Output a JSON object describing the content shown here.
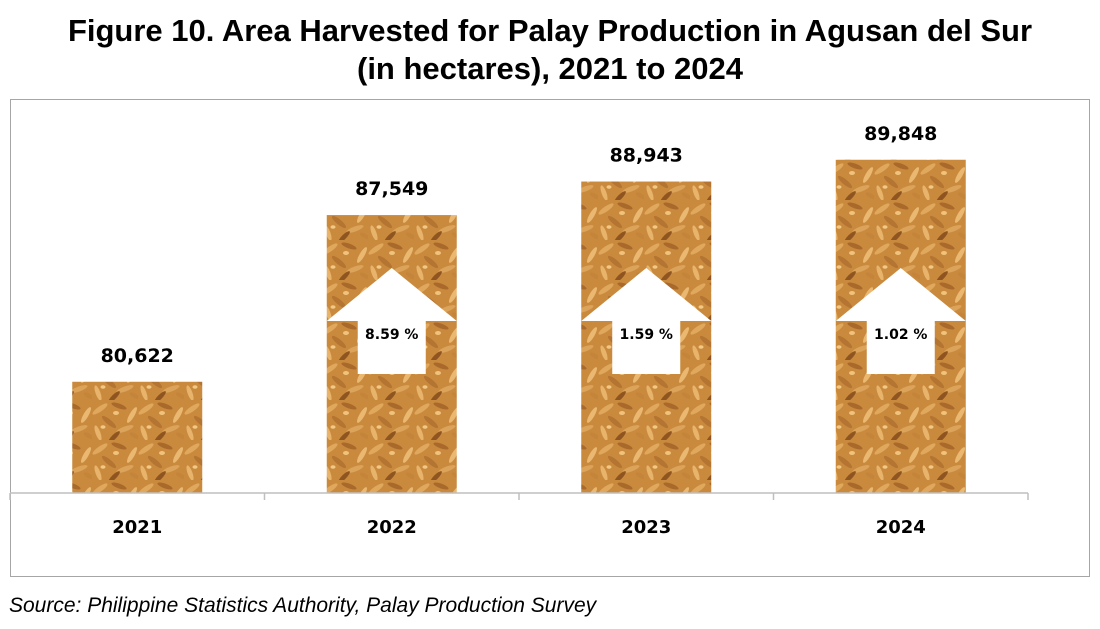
{
  "title_line1": "Figure 10. Area Harvested for Palay Production in Agusan del Sur",
  "title_line2": "(in hectares), 2021 to 2024",
  "source": "Source: Philippine Statistics Authority, Palay Production Survey",
  "colors": {
    "grain_base": "#c98a3e",
    "grain_light": "#e8b36a",
    "grain_dark": "#7a4a1c",
    "arrow": "#ffffff",
    "axis": "#bfbfbf",
    "frame": "#a6a6a6"
  },
  "chart_data": {
    "type": "bar",
    "categories": [
      "2021",
      "2022",
      "2023",
      "2024"
    ],
    "values": [
      80622,
      87549,
      88943,
      89848
    ],
    "value_labels": [
      "80,622",
      "87,549",
      "88,943",
      "89,848"
    ],
    "growth_labels": [
      "",
      "8.59 %",
      "1.59 %",
      "1.02 %"
    ],
    "title": "Figure 10. Area Harvested for Palay Production in Agusan del Sur (in hectares), 2021 to 2024",
    "xlabel": "",
    "ylabel": "",
    "ylim": [
      76000,
      91500
    ],
    "grid": false,
    "legend": "none"
  }
}
